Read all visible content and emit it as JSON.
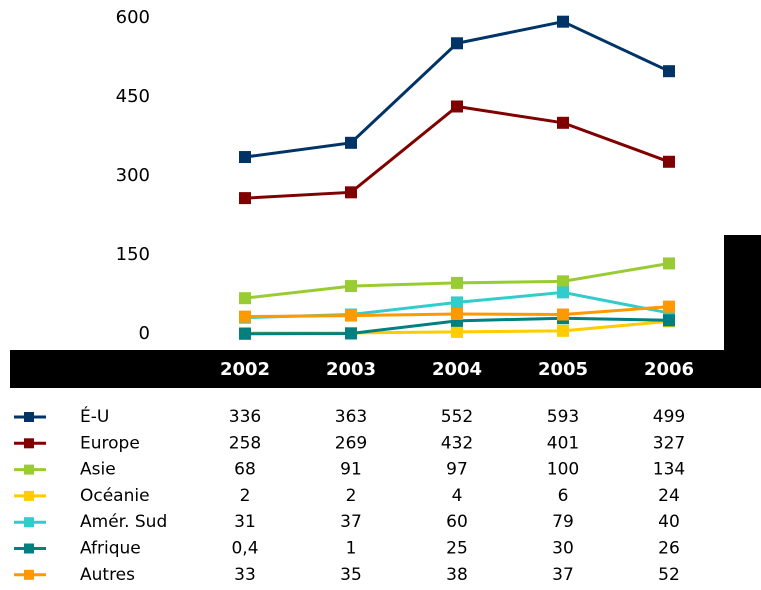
{
  "chart_data": {
    "type": "line",
    "categories": [
      "2002",
      "2003",
      "2004",
      "2005",
      "2006"
    ],
    "ylim": [
      0,
      600
    ],
    "yticks": [
      0,
      150,
      300,
      450,
      600
    ],
    "series": [
      {
        "name": "É-U",
        "color": "#003366",
        "values": [
          336,
          363,
          552,
          593,
          499
        ]
      },
      {
        "name": "Europe",
        "color": "#800000",
        "values": [
          258,
          269,
          432,
          401,
          327
        ]
      },
      {
        "name": "Asie",
        "color": "#99cc33",
        "values": [
          68,
          91,
          97,
          100,
          134
        ]
      },
      {
        "name": "Océanie",
        "color": "#ffcc00",
        "values": [
          2,
          2,
          4,
          6,
          24
        ]
      },
      {
        "name": "Amér. Sud",
        "color": "#33cccc",
        "values": [
          31,
          37,
          60,
          79,
          40
        ]
      },
      {
        "name": "Afrique",
        "color": "#008080",
        "values": [
          0.4,
          1,
          25,
          30,
          26
        ],
        "value_labels": [
          "0,4",
          "1",
          "25",
          "30",
          "26"
        ]
      },
      {
        "name": "Autres",
        "color": "#ff9900",
        "values": [
          33,
          35,
          38,
          37,
          52
        ]
      }
    ]
  }
}
